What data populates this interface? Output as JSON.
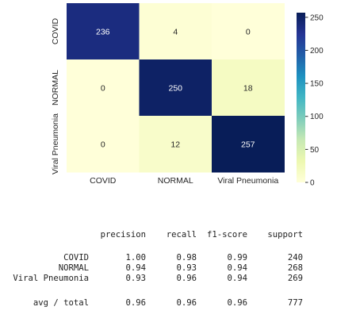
{
  "chart_data": {
    "type": "heatmap",
    "x_labels": [
      "COVID",
      "NORMAL",
      "Viral Pneumonia"
    ],
    "y_labels": [
      "COVID",
      "NORMAL",
      "Viral Pneumonia"
    ],
    "matrix": [
      [
        236,
        4,
        0
      ],
      [
        0,
        250,
        18
      ],
      [
        0,
        12,
        257
      ]
    ],
    "colorbar": {
      "range": [
        0,
        257
      ],
      "ticks": [
        0,
        50,
        100,
        150,
        200,
        250
      ],
      "colormap": "YlGnBu",
      "stops": [
        "#ffffd9",
        "#edf8b1",
        "#c7e9b4",
        "#7fcdbb",
        "#41b6c4",
        "#1d91c0",
        "#225ea8",
        "#253494",
        "#081d58"
      ]
    }
  },
  "report": {
    "headers": [
      "precision",
      "recall",
      "f1-score",
      "support"
    ],
    "rows": [
      {
        "label": "COVID",
        "values": [
          "1.00",
          "0.98",
          "0.99",
          "240"
        ]
      },
      {
        "label": "NORMAL",
        "values": [
          "0.94",
          "0.93",
          "0.94",
          "268"
        ]
      },
      {
        "label": "Viral Pneumonia",
        "values": [
          "0.93",
          "0.96",
          "0.94",
          "269"
        ]
      }
    ],
    "total": {
      "label": "avg / total",
      "values": [
        "0.96",
        "0.96",
        "0.96",
        "777"
      ]
    }
  }
}
